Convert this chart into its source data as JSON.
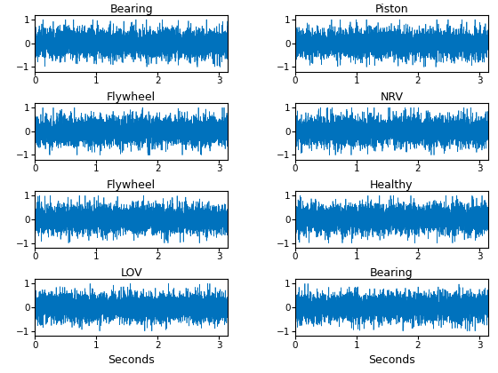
{
  "titles": [
    "Bearing",
    "Piston",
    "Flywheel",
    "NRV",
    "Flywheel",
    "Healthy",
    "LOV",
    "Bearing"
  ],
  "xlabels": [
    "",
    "",
    "",
    "",
    "",
    "",
    "Seconds",
    "Seconds"
  ],
  "ylim": [
    -1.2,
    1.2
  ],
  "xlim": [
    0,
    3.14159
  ],
  "xticks": [
    0,
    1,
    2,
    3
  ],
  "yticks": [
    -1,
    0,
    1
  ],
  "line_color": "#0072BD",
  "n_points": 5000,
  "seeds": [
    42,
    7,
    13,
    99,
    55,
    21,
    88,
    33
  ],
  "title_fontsize": 9,
  "xlabel_fontsize": 9,
  "tick_fontsize": 7.5,
  "fig_width": 5.6,
  "fig_height": 4.2,
  "dpi": 100
}
